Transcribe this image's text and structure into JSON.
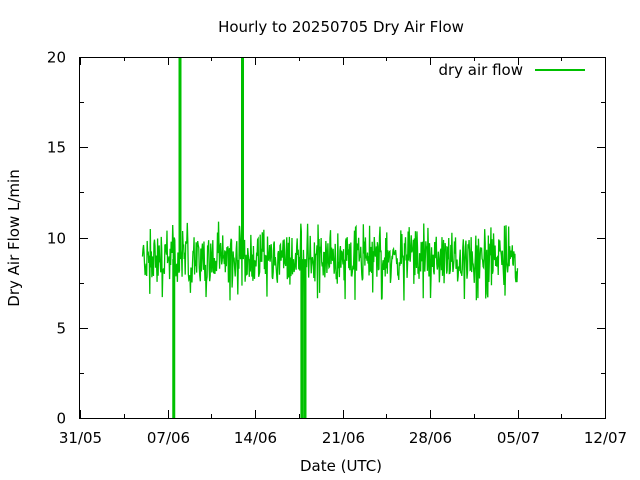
{
  "chart_data": {
    "type": "line",
    "title": "Hourly to 20250705 Dry Air Flow",
    "xlabel": "Date (UTC)",
    "ylabel": "Dry Air Flow L/min",
    "x_tick_labels": [
      "31/05",
      "07/06",
      "14/06",
      "21/06",
      "28/06",
      "05/07",
      "12/07"
    ],
    "y_tick_labels": [
      "0",
      "5",
      "10",
      "15",
      "20"
    ],
    "xlim": [
      "2025-05-31",
      "2025-07-12"
    ],
    "ylim": [
      0,
      20
    ],
    "x_ticks": [
      "2025-05-31",
      "2025-06-07",
      "2025-06-14",
      "2025-06-21",
      "2025-06-28",
      "2025-07-05",
      "2025-07-12"
    ],
    "y_ticks": [
      0,
      5,
      10,
      15,
      20
    ],
    "legend_position": "top-right",
    "grid": false,
    "series": [
      {
        "name": "dry air flow",
        "color": "#00c000",
        "x_start": "2025-06-05",
        "x_end": "2025-07-05",
        "typical_value_range": [
          7.0,
          10.3
        ],
        "mean_value": 8.8,
        "spikes": [
          {
            "x": "2025-06-07 12:00",
            "y": 0
          },
          {
            "x": "2025-06-08 00:00",
            "y": 20
          },
          {
            "x": "2025-06-13 00:00",
            "y": 20
          },
          {
            "x": "2025-06-17 18:00",
            "y": 0
          },
          {
            "x": "2025-06-18 00:00",
            "y": 0
          }
        ]
      }
    ]
  }
}
